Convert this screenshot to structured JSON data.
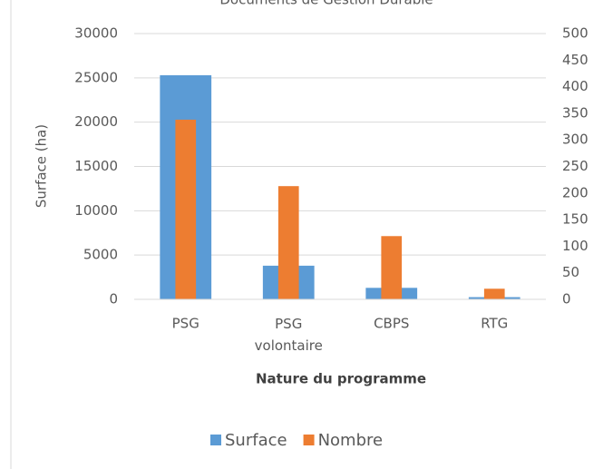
{
  "chart_data": {
    "type": "bar",
    "title": "Documents de Gestion Durable",
    "categories": [
      "PSG",
      "PSG volontaire",
      "CBPS",
      "RTG"
    ],
    "x_label": "Nature du programme",
    "y_label": "Surface (ha)",
    "series": [
      {
        "name": "Surface",
        "color": "#5b9bd5",
        "values": [
          25300,
          3800,
          1300,
          250
        ]
      },
      {
        "name": "Nombre",
        "color": "#ed7d31",
        "axis": "y2",
        "values": [
          338,
          213,
          119,
          20
        ]
      }
    ],
    "ylim": [
      0,
      30000
    ],
    "yticks": [
      0,
      5000,
      10000,
      15000,
      20000,
      25000,
      30000
    ],
    "y2lim": [
      0,
      500
    ],
    "y2ticks": [
      0,
      50,
      100,
      150,
      200,
      250,
      300,
      350,
      400,
      450,
      500
    ],
    "grid": true,
    "legend": "bottom"
  }
}
